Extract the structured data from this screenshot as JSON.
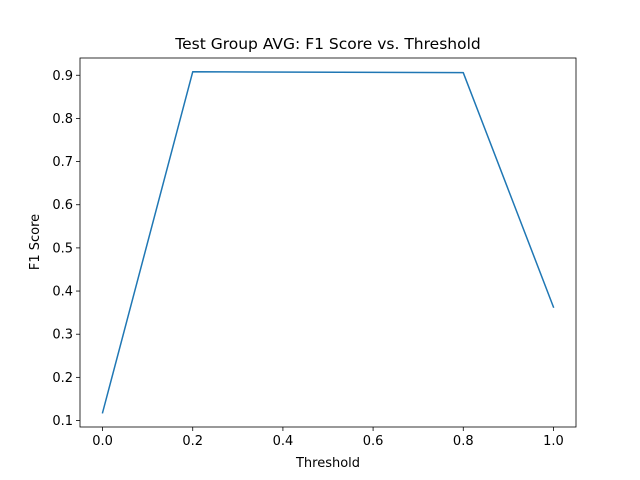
{
  "chart_data": {
    "type": "line",
    "title": "Test Group AVG: F1 Score vs. Threshold",
    "xlabel": "Threshold",
    "ylabel": "F1 Score",
    "xlim": [
      -0.05,
      1.05
    ],
    "ylim": [
      0.085,
      0.94
    ],
    "xticks": [
      0.0,
      0.2,
      0.4,
      0.6,
      0.8,
      1.0
    ],
    "xtick_labels": [
      "0.0",
      "0.2",
      "0.4",
      "0.6",
      "0.8",
      "1.0"
    ],
    "yticks": [
      0.1,
      0.2,
      0.3,
      0.4,
      0.5,
      0.6,
      0.7,
      0.8,
      0.9
    ],
    "ytick_labels": [
      "0.1",
      "0.2",
      "0.3",
      "0.4",
      "0.5",
      "0.6",
      "0.7",
      "0.8",
      "0.9"
    ],
    "grid": false,
    "series": [
      {
        "color": "#1f77b4",
        "x": [
          0.0,
          0.2,
          0.8,
          1.0
        ],
        "y": [
          0.118,
          0.908,
          0.906,
          0.363
        ]
      }
    ]
  }
}
